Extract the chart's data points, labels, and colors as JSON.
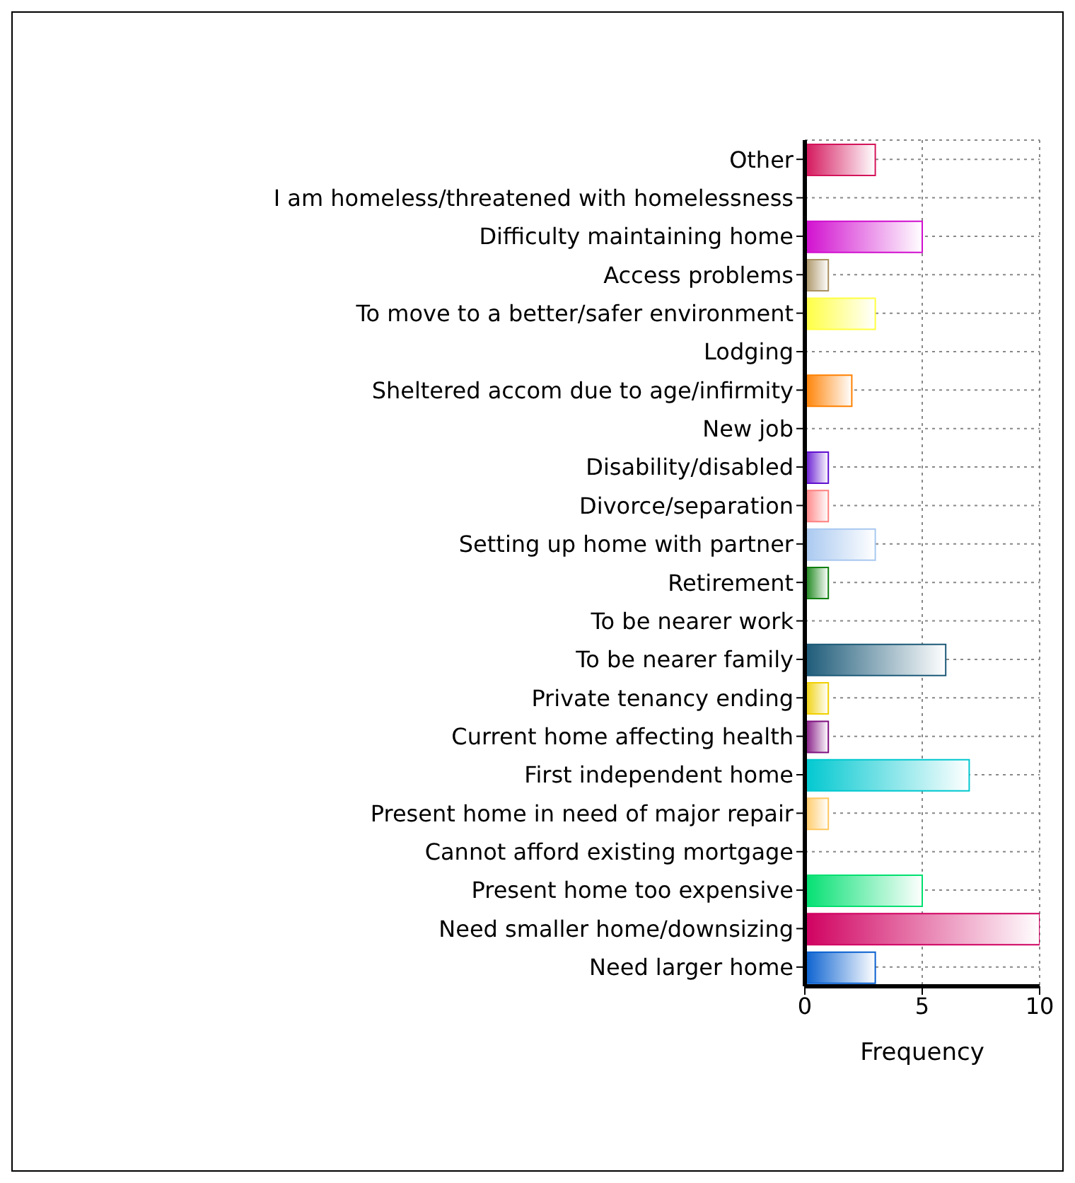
{
  "chart_data": {
    "type": "bar",
    "orientation": "horizontal",
    "xlabel": "Frequency",
    "categories": [
      "Other",
      "I am homeless/threatened with homelessness",
      "Difficulty maintaining home",
      "Access problems",
      "To move to a better/safer environment",
      "Lodging",
      "Sheltered accom due to age/infirmity",
      "New job",
      "Disability/disabled",
      "Divorce/separation",
      "Setting up home with partner",
      "Retirement",
      "To be nearer work",
      "To be nearer family",
      "Private tenancy ending",
      "Current home affecting health",
      "First independent home",
      "Present home in need of major repair",
      "Cannot afford existing mortgage",
      "Present home too expensive",
      "Need smaller home/downsizing",
      "Need larger home"
    ],
    "values": [
      3,
      0,
      5,
      1,
      3,
      0,
      2,
      0,
      1,
      1,
      3,
      1,
      0,
      6,
      1,
      1,
      7,
      1,
      0,
      5,
      10,
      3
    ],
    "colors": [
      "#d4145a",
      null,
      "#d10ecf",
      "#a89060",
      "#ffff40",
      null,
      "#ff8000",
      null,
      "#6010d0",
      "#ff8080",
      "#a8c8f0",
      "#108010",
      null,
      "#1c5a78",
      "#f0d000",
      "#801080",
      "#00c8d0",
      "#ffc860",
      null,
      "#00e070",
      "#d00060",
      "#0860d0"
    ],
    "xlim": [
      0,
      10
    ],
    "xticks": [
      0,
      5,
      10
    ],
    "grid": true
  }
}
